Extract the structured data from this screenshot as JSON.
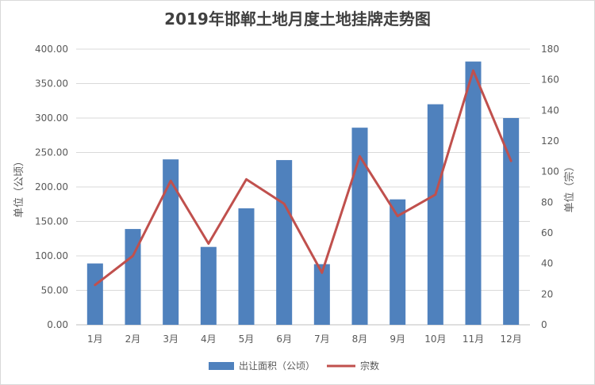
{
  "chart_data": {
    "type": "bar",
    "title": "2019年邯郸土地月度土地挂牌走势图",
    "categories": [
      "1月",
      "2月",
      "3月",
      "4月",
      "5月",
      "6月",
      "7月",
      "8月",
      "9月",
      "10月",
      "11月",
      "12月"
    ],
    "series": [
      {
        "name": "出让面积（公顷）",
        "type": "bar",
        "axis": "left",
        "color": "#4f81bd",
        "values": [
          89,
          139,
          240,
          113,
          169,
          239,
          88,
          286,
          182,
          320,
          382,
          300
        ]
      },
      {
        "name": "宗数",
        "type": "line",
        "axis": "right",
        "color": "#c0504d",
        "values": [
          26,
          45,
          94,
          53,
          95,
          79,
          34,
          110,
          71,
          85,
          166,
          107
        ]
      }
    ],
    "ylabel_left": "单位（公顷）",
    "ylabel_right": "单位（宗）",
    "ylim_left": [
      0,
      400
    ],
    "ylim_right": [
      0,
      180
    ],
    "yticks_left": [
      "0.00",
      "50.00",
      "100.00",
      "150.00",
      "200.00",
      "250.00",
      "300.00",
      "350.00",
      "400.00"
    ],
    "yticks_right": [
      "0",
      "20",
      "40",
      "60",
      "80",
      "100",
      "120",
      "140",
      "160",
      "180"
    ],
    "grid": true,
    "legend": "bottom"
  }
}
